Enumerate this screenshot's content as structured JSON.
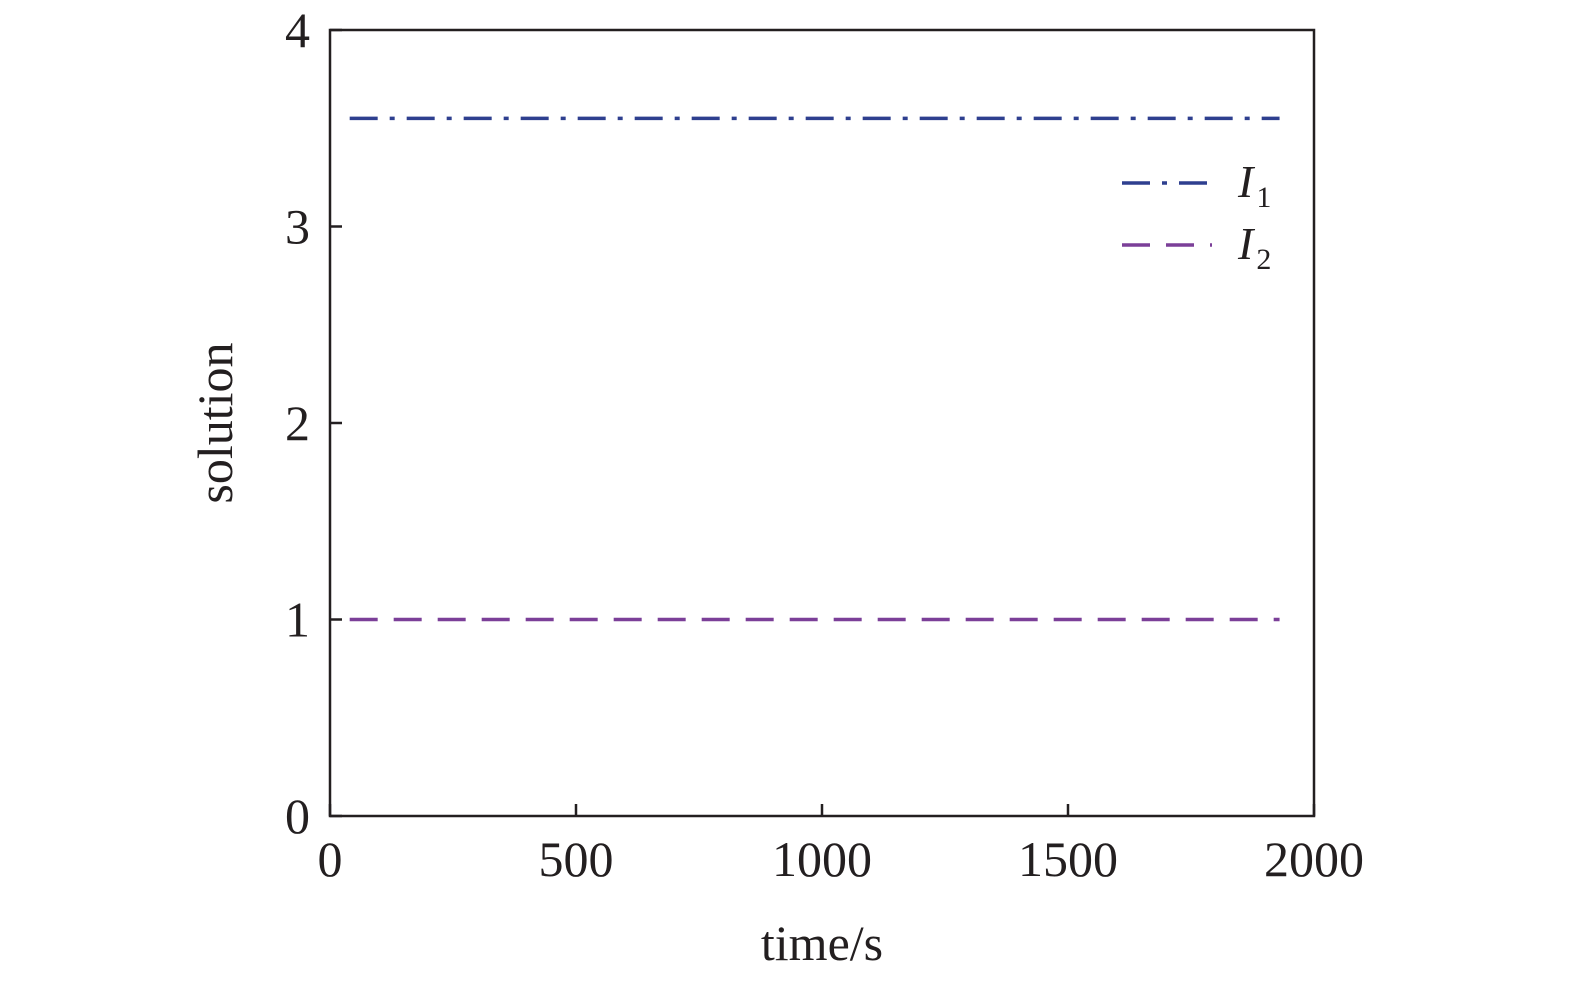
{
  "chart_data": {
    "type": "line",
    "xlabel": "time/s",
    "ylabel": "solution",
    "xlim": [
      0,
      2000
    ],
    "ylim": [
      0,
      4
    ],
    "x_ticks": [
      "0",
      "500",
      "1000",
      "1500",
      "2000"
    ],
    "y_ticks": [
      "0",
      "1",
      "2",
      "3",
      "4"
    ],
    "grid": false,
    "legend_position": "top-right",
    "series": [
      {
        "name_base": "I",
        "name_sub": "1",
        "x": [
          40,
          1930
        ],
        "y": [
          3.55,
          3.55
        ],
        "style": "dash-dot",
        "color": "#2e3f8f"
      },
      {
        "name_base": "I",
        "name_sub": "2",
        "x": [
          40,
          1930
        ],
        "y": [
          1.0,
          1.0
        ],
        "style": "dashed",
        "color": "#7b3f98"
      }
    ]
  }
}
